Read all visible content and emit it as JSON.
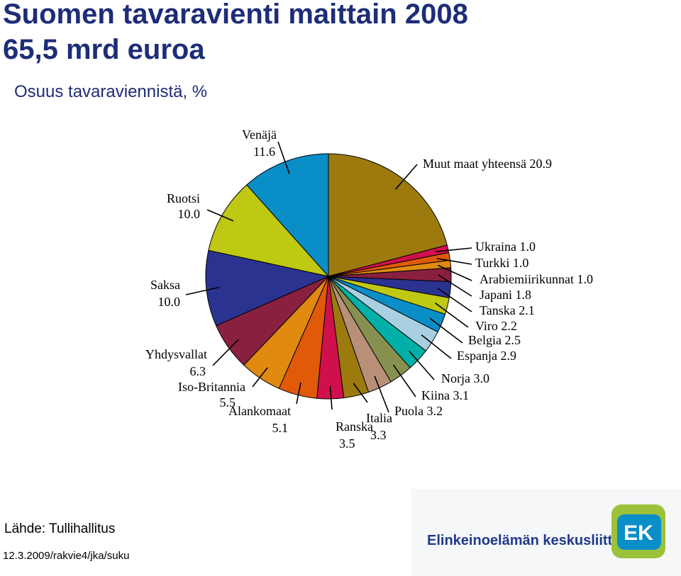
{
  "header": {
    "title_line1": "Suomen tavaravienti maittain 2008",
    "title_line2": "65,5 mrd euroa",
    "subtitle": "Osuus tavaraviennistä, %"
  },
  "footer": {
    "source": "Lähde: Tullihallitus",
    "footnote": "12.3.2009/rakvie4/jka/suku",
    "logo_name": "Elinkeinoelämän keskusliitto",
    "logo_mark": "EK"
  },
  "chart_data": {
    "type": "pie",
    "unit": "%",
    "slices": [
      {
        "name": "Muut maat yhteensä",
        "value": 20.9,
        "color": "#9c7a0e"
      },
      {
        "name": "Ukraina",
        "value": 1.0,
        "color": "#d0104c"
      },
      {
        "name": "Turkki",
        "value": 1.0,
        "color": "#e05a0a"
      },
      {
        "name": "Arabiemiirikunnat",
        "value": 1.0,
        "color": "#e08a10"
      },
      {
        "name": "Japani",
        "value": 1.8,
        "color": "#8a2040"
      },
      {
        "name": "Tanska",
        "value": 2.1,
        "color": "#2b3390"
      },
      {
        "name": "Viro",
        "value": 2.2,
        "color": "#bfc812"
      },
      {
        "name": "Belgia",
        "value": 2.5,
        "color": "#0a8ec8"
      },
      {
        "name": "Espanja",
        "value": 2.9,
        "color": "#a8d0e0"
      },
      {
        "name": "Norja",
        "value": 3.0,
        "color": "#00b0a8"
      },
      {
        "name": "Kiina",
        "value": 3.1,
        "color": "#889050"
      },
      {
        "name": "Puola",
        "value": 3.2,
        "color": "#b89078"
      },
      {
        "name": "Italia",
        "value": 3.3,
        "color": "#9c7a0e"
      },
      {
        "name": "Ranska",
        "value": 3.5,
        "color": "#d0104c"
      },
      {
        "name": "Alankomaat",
        "value": 5.1,
        "color": "#e05a0a"
      },
      {
        "name": "Iso-Britannia",
        "value": 5.5,
        "color": "#e08a10"
      },
      {
        "name": "Yhdysvallat",
        "value": 6.3,
        "color": "#8a2040"
      },
      {
        "name": "Saksa",
        "value": 10.0,
        "color": "#2b3390"
      },
      {
        "name": "Ruotsi",
        "value": 10.0,
        "color": "#bfc812"
      },
      {
        "name": "Venäjä",
        "value": 11.6,
        "color": "#0a8ec8"
      }
    ],
    "value_labels": [
      "20.9",
      "1.0",
      "1.0",
      "1.0",
      "1.8",
      "2.1",
      "2.2",
      "2.5",
      "2.9",
      "3.0",
      "3.1",
      "3.2",
      "3.3",
      "3.5",
      "5.1",
      "5.5",
      "6.3",
      "10.0",
      "10.0",
      "11.6"
    ]
  }
}
